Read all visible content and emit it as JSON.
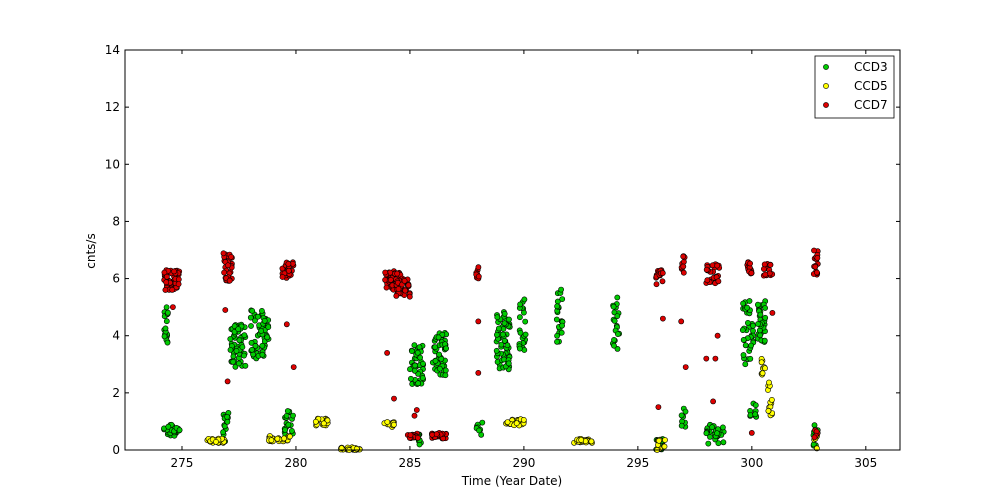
{
  "chart_data": {
    "type": "scatter",
    "title": "",
    "xlabel": "Time (Year Date)",
    "ylabel": "cnts/s",
    "xlim": [
      272.5,
      306.5
    ],
    "ylim": [
      0,
      14
    ],
    "xticks": [
      275,
      280,
      285,
      290,
      295,
      300,
      305
    ],
    "yticks": [
      0,
      2,
      4,
      6,
      8,
      10,
      12,
      14
    ],
    "grid": false,
    "legend_position": "top-right",
    "series": [
      {
        "name": "CCD3",
        "color": "#00cc00",
        "clusters": [
          {
            "x0": 274.2,
            "x1": 274.4,
            "y0": 3.5,
            "y1": 5.0,
            "n": 18
          },
          {
            "x0": 274.2,
            "x1": 274.9,
            "y0": 0.5,
            "y1": 0.9,
            "n": 30
          },
          {
            "x0": 276.8,
            "x1": 277.1,
            "y0": 0.3,
            "y1": 1.3,
            "n": 16
          },
          {
            "x0": 277.1,
            "x1": 277.8,
            "y0": 2.9,
            "y1": 4.4,
            "n": 60
          },
          {
            "x0": 278.0,
            "x1": 278.8,
            "y0": 3.2,
            "y1": 4.9,
            "n": 60
          },
          {
            "x0": 279.5,
            "x1": 279.9,
            "y0": 0.5,
            "y1": 1.4,
            "n": 20
          },
          {
            "x0": 285.0,
            "x1": 285.6,
            "y0": 2.3,
            "y1": 3.7,
            "n": 50
          },
          {
            "x0": 285.3,
            "x1": 285.5,
            "y0": 0.1,
            "y1": 0.6,
            "n": 8
          },
          {
            "x0": 286.0,
            "x1": 286.6,
            "y0": 2.6,
            "y1": 4.1,
            "n": 50
          },
          {
            "x0": 287.9,
            "x1": 288.2,
            "y0": 0.5,
            "y1": 1.0,
            "n": 8
          },
          {
            "x0": 288.8,
            "x1": 289.4,
            "y0": 2.8,
            "y1": 4.9,
            "n": 60
          },
          {
            "x0": 289.8,
            "x1": 290.1,
            "y0": 3.5,
            "y1": 5.5,
            "n": 22
          },
          {
            "x0": 291.4,
            "x1": 291.7,
            "y0": 3.7,
            "y1": 5.7,
            "n": 22
          },
          {
            "x0": 293.9,
            "x1": 294.2,
            "y0": 3.5,
            "y1": 5.5,
            "n": 20
          },
          {
            "x0": 295.8,
            "x1": 296.1,
            "y0": 0.0,
            "y1": 0.4,
            "n": 12
          },
          {
            "x0": 296.8,
            "x1": 297.1,
            "y0": 0.7,
            "y1": 1.5,
            "n": 10
          },
          {
            "x0": 298.0,
            "x1": 298.8,
            "y0": 0.2,
            "y1": 0.9,
            "n": 30
          },
          {
            "x0": 299.6,
            "x1": 300.1,
            "y0": 3.0,
            "y1": 5.3,
            "n": 35
          },
          {
            "x0": 300.2,
            "x1": 300.6,
            "y0": 3.7,
            "y1": 5.3,
            "n": 30
          },
          {
            "x0": 299.9,
            "x1": 300.2,
            "y0": 1.0,
            "y1": 1.7,
            "n": 10
          },
          {
            "x0": 302.7,
            "x1": 302.9,
            "y0": 0.1,
            "y1": 0.9,
            "n": 8
          }
        ]
      },
      {
        "name": "CCD5",
        "color": "#ffff00",
        "clusters": [
          {
            "x0": 276.1,
            "x1": 276.9,
            "y0": 0.25,
            "y1": 0.4,
            "n": 30
          },
          {
            "x0": 278.8,
            "x1": 279.8,
            "y0": 0.3,
            "y1": 0.5,
            "n": 30
          },
          {
            "x0": 280.8,
            "x1": 281.4,
            "y0": 0.85,
            "y1": 1.1,
            "n": 20
          },
          {
            "x0": 281.9,
            "x1": 282.8,
            "y0": 0.0,
            "y1": 0.1,
            "n": 30
          },
          {
            "x0": 283.8,
            "x1": 284.4,
            "y0": 0.8,
            "y1": 1.0,
            "n": 14
          },
          {
            "x0": 289.2,
            "x1": 290.0,
            "y0": 0.85,
            "y1": 1.1,
            "n": 22
          },
          {
            "x0": 292.2,
            "x1": 293.0,
            "y0": 0.25,
            "y1": 0.4,
            "n": 30
          },
          {
            "x0": 295.8,
            "x1": 296.2,
            "y0": 0.0,
            "y1": 0.4,
            "n": 10
          },
          {
            "x0": 300.4,
            "x1": 300.6,
            "y0": 2.6,
            "y1": 3.3,
            "n": 10
          },
          {
            "x0": 300.7,
            "x1": 300.9,
            "y0": 1.2,
            "y1": 2.4,
            "n": 14
          },
          {
            "x0": 302.7,
            "x1": 302.9,
            "y0": 0.05,
            "y1": 0.5,
            "n": 6
          }
        ]
      },
      {
        "name": "CCD7",
        "color": "#dd0000",
        "clusters": [
          {
            "x0": 274.2,
            "x1": 274.9,
            "y0": 5.6,
            "y1": 6.3,
            "n": 50
          },
          {
            "x0": 276.8,
            "x1": 277.2,
            "y0": 5.9,
            "y1": 6.9,
            "n": 30
          },
          {
            "x0": 279.4,
            "x1": 279.9,
            "y0": 6.0,
            "y1": 6.6,
            "n": 30
          },
          {
            "x0": 283.9,
            "x1": 284.6,
            "y0": 5.6,
            "y1": 6.3,
            "n": 40
          },
          {
            "x0": 284.4,
            "x1": 285.0,
            "y0": 5.3,
            "y1": 6.0,
            "n": 40
          },
          {
            "x0": 284.9,
            "x1": 285.4,
            "y0": 0.4,
            "y1": 0.6,
            "n": 20
          },
          {
            "x0": 285.9,
            "x1": 286.6,
            "y0": 0.4,
            "y1": 0.6,
            "n": 30
          },
          {
            "x0": 287.9,
            "x1": 288.1,
            "y0": 6.0,
            "y1": 6.4,
            "n": 8
          },
          {
            "x0": 295.8,
            "x1": 296.1,
            "y0": 5.8,
            "y1": 6.3,
            "n": 20
          },
          {
            "x0": 296.9,
            "x1": 297.1,
            "y0": 6.2,
            "y1": 6.8,
            "n": 10
          },
          {
            "x0": 298.0,
            "x1": 298.6,
            "y0": 5.8,
            "y1": 6.5,
            "n": 30
          },
          {
            "x0": 299.8,
            "x1": 300.0,
            "y0": 6.0,
            "y1": 6.6,
            "n": 14
          },
          {
            "x0": 300.5,
            "x1": 300.9,
            "y0": 6.1,
            "y1": 6.6,
            "n": 16
          },
          {
            "x0": 302.7,
            "x1": 302.9,
            "y0": 6.1,
            "y1": 7.0,
            "n": 16
          },
          {
            "x0": 302.7,
            "x1": 302.9,
            "y0": 0.3,
            "y1": 0.7,
            "n": 6
          }
        ],
        "points": [
          [
            274.6,
            5.0
          ],
          [
            276.9,
            4.9
          ],
          [
            277.0,
            2.4
          ],
          [
            279.6,
            4.4
          ],
          [
            279.9,
            2.9
          ],
          [
            284.0,
            3.4
          ],
          [
            284.3,
            1.8
          ],
          [
            288.0,
            4.5
          ],
          [
            288.0,
            2.7
          ],
          [
            295.9,
            1.5
          ],
          [
            296.1,
            4.6
          ],
          [
            296.9,
            4.5
          ],
          [
            297.1,
            2.9
          ],
          [
            298.0,
            3.2
          ],
          [
            298.4,
            3.2
          ],
          [
            298.5,
            4.0
          ],
          [
            298.3,
            1.7
          ],
          [
            300.9,
            4.8
          ],
          [
            300.0,
            0.6
          ],
          [
            285.2,
            1.2
          ],
          [
            285.3,
            1.4
          ]
        ]
      }
    ]
  }
}
